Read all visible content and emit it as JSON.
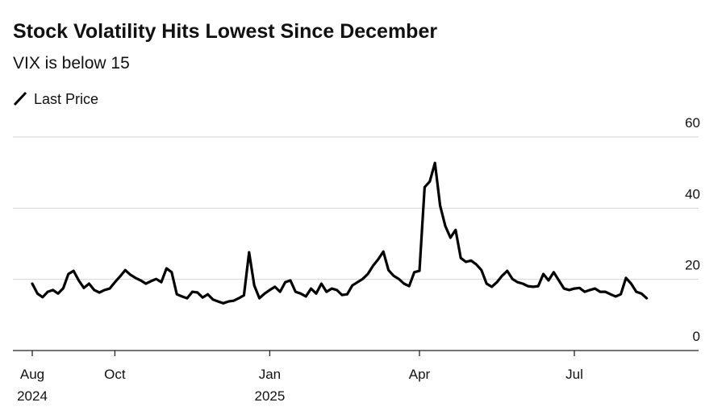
{
  "chart_data": {
    "type": "line",
    "title": "Stock Volatility Hits Lowest Since December",
    "subtitle": "VIX is below 15",
    "categories": [
      "Aug 2024",
      null,
      null,
      null,
      null,
      null,
      null,
      null,
      null,
      null,
      null,
      null,
      null,
      null,
      null,
      null,
      "Oct",
      null,
      null,
      null,
      null,
      null,
      null,
      null,
      null,
      null,
      null,
      null,
      null,
      null,
      null,
      null,
      null,
      null,
      null,
      null,
      null,
      null,
      null,
      null,
      null,
      null,
      null,
      null,
      null,
      null,
      "Jan 2025",
      null,
      null,
      null,
      null,
      null,
      null,
      null,
      null,
      null,
      null,
      null,
      null,
      null,
      null,
      null,
      null,
      null,
      null,
      null,
      null,
      null,
      null,
      null,
      null,
      null,
      null,
      null,
      null,
      "Apr",
      null,
      null,
      null,
      null,
      null,
      null,
      null,
      null,
      null,
      null,
      null,
      null,
      null,
      null,
      null,
      null,
      null,
      null,
      null,
      null,
      null,
      null,
      null,
      null,
      null,
      null,
      null,
      null,
      null,
      "Jul",
      null,
      null,
      null,
      null,
      null,
      null,
      null,
      null,
      null,
      null,
      null,
      null,
      null,
      null
    ],
    "series": [
      {
        "name": "Last Price",
        "color": "#000000",
        "values": [
          18.8,
          16,
          15,
          16.5,
          17,
          16,
          17.5,
          21.5,
          22.4,
          19.7,
          17.6,
          18.8,
          17,
          16.3,
          17,
          17.4,
          19.2,
          20.8,
          22.6,
          21.3,
          20.4,
          19.7,
          18.8,
          19.5,
          20.1,
          19.2,
          23.1,
          22,
          15.8,
          15.2,
          14.7,
          16.5,
          16.3,
          14.9,
          15.8,
          14.3,
          13.8,
          13.3,
          13.8,
          14,
          14.7,
          15.5,
          27.6,
          18.3,
          14.7,
          16,
          17,
          17.9,
          16.5,
          19.2,
          19.7,
          16.5,
          16,
          15.2,
          17.4,
          16,
          18.8,
          16.5,
          17.4,
          17,
          15.6,
          15.8,
          18.3,
          19.2,
          20.1,
          21.5,
          23.8,
          25.6,
          27.8,
          22.6,
          21,
          20.1,
          18.8,
          18.1,
          22,
          22.4,
          45.9,
          47.5,
          52.7,
          40.7,
          35,
          31.7,
          33.9,
          26,
          24.9,
          25.3,
          24.2,
          22.6,
          18.8,
          17.9,
          19.2,
          21,
          22.4,
          20.1,
          19.2,
          18.8,
          18.1,
          17.9,
          18.1,
          21.5,
          19.7,
          22,
          19.7,
          17.4,
          17,
          17.4,
          17.6,
          16.5,
          17,
          17.4,
          16.5,
          16.5,
          15.8,
          15.2,
          15.8,
          20.4,
          18.8,
          16.5,
          16,
          14.7
        ]
      }
    ],
    "ylim": [
      0,
      60
    ],
    "yticks": [
      0,
      20,
      40,
      60
    ],
    "grid": true
  }
}
